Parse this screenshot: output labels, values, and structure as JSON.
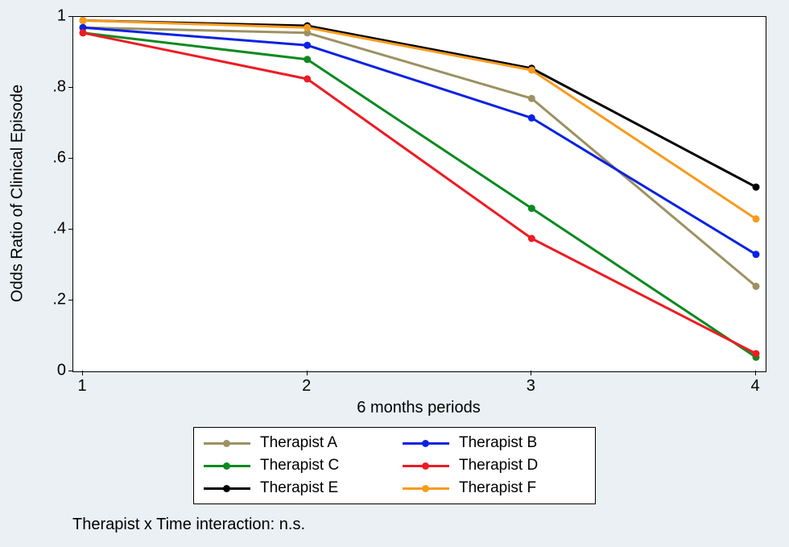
{
  "chart": {
    "type": "line",
    "background_color": "#eaf0f4",
    "plot_background": "#ffffff",
    "plot_border_color": "#000000",
    "xlabel": "6 months periods",
    "ylabel": "Odds Ratio of Clinical Episode",
    "label_fontsize": 20,
    "tick_fontsize": 20,
    "xlim": [
      1,
      4
    ],
    "ylim": [
      0,
      1
    ],
    "xticks": [
      1,
      2,
      3,
      4
    ],
    "yticks": [
      0,
      0.2,
      0.4,
      0.6,
      0.8,
      1
    ],
    "ytick_labels": [
      "0",
      ".2",
      ".4",
      ".6",
      ".8",
      "1"
    ],
    "line_width": 3,
    "marker_size": 9,
    "series": [
      {
        "label": "Therapist A",
        "line_color": "#9c9162",
        "marker_color": "#9c9162",
        "x": [
          1,
          2,
          3,
          4
        ],
        "y": [
          0.97,
          0.955,
          0.77,
          0.24
        ]
      },
      {
        "label": "Therapist B",
        "line_color": "#0a22e2",
        "marker_color": "#0a22e2",
        "x": [
          1,
          2,
          3,
          4
        ],
        "y": [
          0.97,
          0.92,
          0.715,
          0.33
        ]
      },
      {
        "label": "Therapist C",
        "line_color": "#0c8a1f",
        "marker_color": "#0c8a1f",
        "x": [
          1,
          2,
          3,
          4
        ],
        "y": [
          0.955,
          0.88,
          0.46,
          0.04
        ]
      },
      {
        "label": "Therapist D",
        "line_color": "#ed1b24",
        "marker_color": "#ed1b24",
        "x": [
          1,
          2,
          3,
          4
        ],
        "y": [
          0.955,
          0.825,
          0.375,
          0.05
        ]
      },
      {
        "label": "Therapist E",
        "line_color": "#000000",
        "marker_color": "#000000",
        "x": [
          1,
          2,
          3,
          4
        ],
        "y": [
          0.99,
          0.975,
          0.855,
          0.52
        ]
      },
      {
        "label": "Therapist F",
        "line_color": "#f79b1e",
        "marker_color": "#f79b1e",
        "x": [
          1,
          2,
          3,
          4
        ],
        "y": [
          0.99,
          0.97,
          0.85,
          0.43
        ]
      }
    ],
    "legend_position": "bottom-center",
    "legend_border_color": "#000000",
    "legend_background": "#ffffff",
    "caption": "Therapist x Time interaction: n.s."
  }
}
